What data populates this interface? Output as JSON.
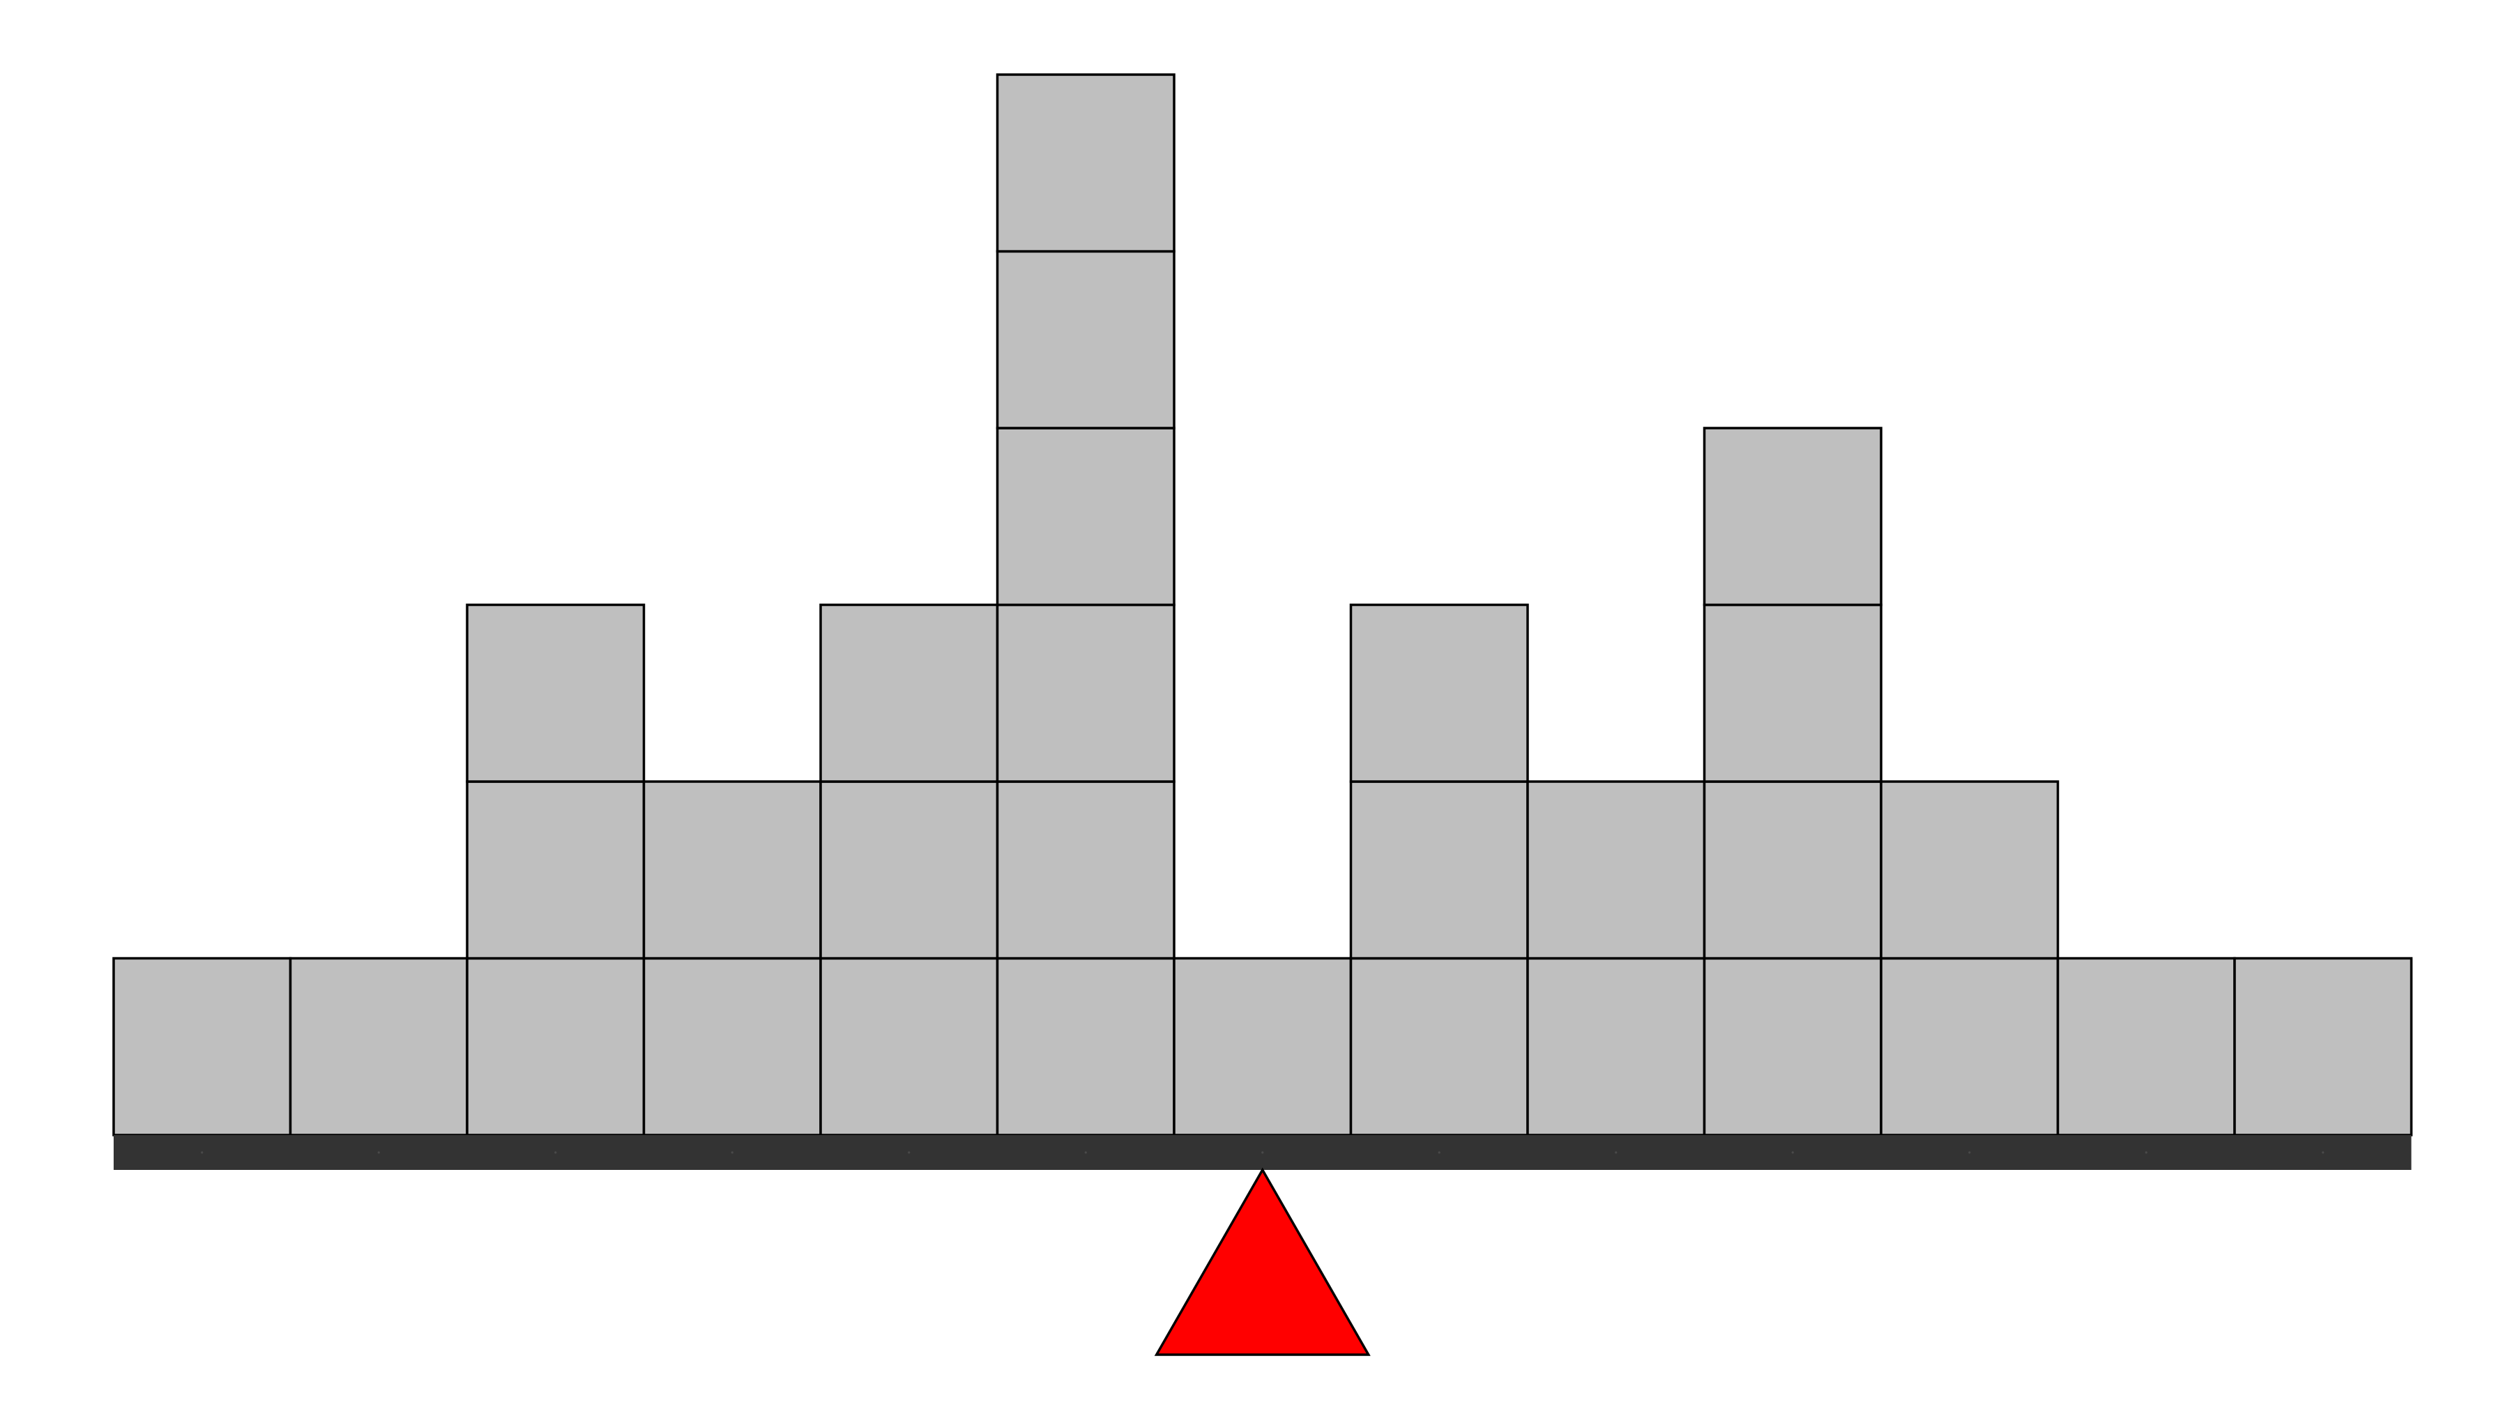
{
  "diagram": {
    "type": "balance-scale-block-stack",
    "column_count": 13,
    "column_heights": [
      1,
      1,
      3,
      2,
      3,
      6,
      1,
      3,
      2,
      4,
      2,
      1,
      1
    ],
    "fulcrum_column_position": 6.5,
    "colors": {
      "block_fill": "#bfbfbf",
      "block_stroke": "#000000",
      "beam": "#333333",
      "fulcrum_fill": "#ff0000",
      "fulcrum_stroke": "#000000",
      "background": "#ffffff"
    }
  }
}
